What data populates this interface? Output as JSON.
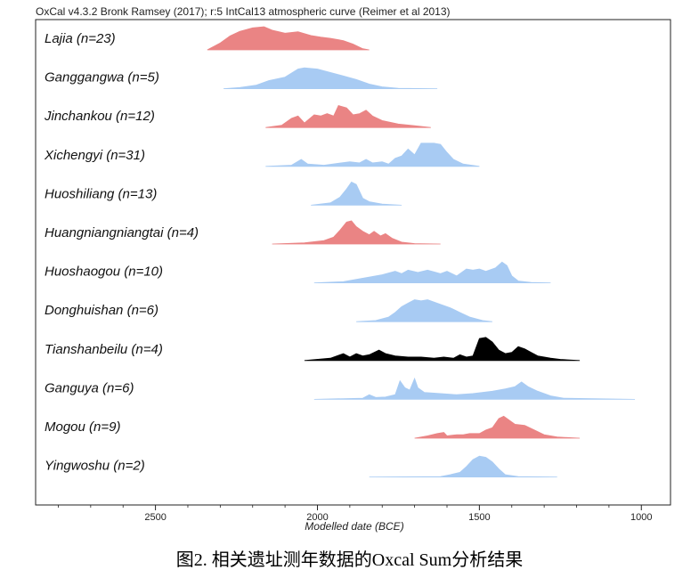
{
  "header_text": "OxCal v4.3.2 Bronk Ramsey (2017); r:5 IntCal13 atmospheric curve (Reimer et al 2013)",
  "caption": "图2. 相关遗址测年数据的Oxcal Sum分析结果",
  "colors": {
    "red": "#ea8484",
    "blue": "#a8cbf3",
    "black": "#000000"
  },
  "chart_data": {
    "type": "area",
    "title": "",
    "xlabel": "Modelled date (BCE)",
    "ylabel": "",
    "x_ticks": [
      2500,
      2000,
      1500,
      1000
    ],
    "xlim": [
      2870,
      910
    ],
    "x_reversed": true,
    "grid": false,
    "series": [
      {
        "name": "Lajia (n=23)",
        "color": "red",
        "points": [
          [
            2340,
            0
          ],
          [
            2300,
            0.3
          ],
          [
            2270,
            0.6
          ],
          [
            2240,
            0.8
          ],
          [
            2200,
            0.95
          ],
          [
            2165,
            1
          ],
          [
            2140,
            0.85
          ],
          [
            2100,
            0.72
          ],
          [
            2060,
            0.78
          ],
          [
            2020,
            0.62
          ],
          [
            1990,
            0.55
          ],
          [
            1960,
            0.5
          ],
          [
            1920,
            0.4
          ],
          [
            1890,
            0.25
          ],
          [
            1860,
            0.05
          ],
          [
            1840,
            0
          ]
        ]
      },
      {
        "name": "Ganggangwa (n=5)",
        "color": "blue",
        "points": [
          [
            2290,
            0
          ],
          [
            2240,
            0.05
          ],
          [
            2190,
            0.15
          ],
          [
            2150,
            0.35
          ],
          [
            2100,
            0.5
          ],
          [
            2060,
            0.85
          ],
          [
            2040,
            0.9
          ],
          [
            2000,
            0.85
          ],
          [
            1960,
            0.7
          ],
          [
            1920,
            0.55
          ],
          [
            1880,
            0.4
          ],
          [
            1840,
            0.2
          ],
          [
            1800,
            0.08
          ],
          [
            1750,
            0.02
          ],
          [
            1630,
            0
          ]
        ]
      },
      {
        "name": "Jinchankou (n=12)",
        "color": "red",
        "points": [
          [
            2160,
            0
          ],
          [
            2110,
            0.1
          ],
          [
            2080,
            0.4
          ],
          [
            2060,
            0.5
          ],
          [
            2040,
            0.2
          ],
          [
            2010,
            0.55
          ],
          [
            1990,
            0.5
          ],
          [
            1970,
            0.6
          ],
          [
            1950,
            0.5
          ],
          [
            1935,
            0.95
          ],
          [
            1910,
            0.85
          ],
          [
            1890,
            0.55
          ],
          [
            1870,
            0.6
          ],
          [
            1850,
            0.75
          ],
          [
            1830,
            0.5
          ],
          [
            1800,
            0.3
          ],
          [
            1750,
            0.15
          ],
          [
            1700,
            0.08
          ],
          [
            1650,
            0
          ]
        ]
      },
      {
        "name": "Xichengyi (n=31)",
        "color": "blue",
        "points": [
          [
            2160,
            0
          ],
          [
            2080,
            0.05
          ],
          [
            2050,
            0.3
          ],
          [
            2030,
            0.1
          ],
          [
            1980,
            0.05
          ],
          [
            1900,
            0.2
          ],
          [
            1870,
            0.15
          ],
          [
            1850,
            0.3
          ],
          [
            1830,
            0.15
          ],
          [
            1800,
            0.2
          ],
          [
            1780,
            0.1
          ],
          [
            1760,
            0.35
          ],
          [
            1740,
            0.45
          ],
          [
            1720,
            0.75
          ],
          [
            1700,
            0.5
          ],
          [
            1680,
            1.0
          ],
          [
            1640,
            1.0
          ],
          [
            1620,
            0.95
          ],
          [
            1600,
            0.6
          ],
          [
            1580,
            0.3
          ],
          [
            1550,
            0.1
          ],
          [
            1500,
            0
          ]
        ]
      },
      {
        "name": "Huoshiliang (n=13)",
        "color": "blue",
        "points": [
          [
            2020,
            0
          ],
          [
            1960,
            0.1
          ],
          [
            1930,
            0.35
          ],
          [
            1910,
            0.7
          ],
          [
            1895,
            1.0
          ],
          [
            1880,
            0.9
          ],
          [
            1860,
            0.3
          ],
          [
            1840,
            0.15
          ],
          [
            1800,
            0.05
          ],
          [
            1740,
            0
          ]
        ]
      },
      {
        "name": "Huangniangniangtai (n=4)",
        "color": "red",
        "points": [
          [
            2140,
            0
          ],
          [
            2040,
            0.05
          ],
          [
            1980,
            0.15
          ],
          [
            1950,
            0.3
          ],
          [
            1930,
            0.6
          ],
          [
            1910,
            0.95
          ],
          [
            1895,
            1.0
          ],
          [
            1880,
            0.75
          ],
          [
            1860,
            0.55
          ],
          [
            1840,
            0.4
          ],
          [
            1825,
            0.55
          ],
          [
            1805,
            0.35
          ],
          [
            1790,
            0.45
          ],
          [
            1770,
            0.25
          ],
          [
            1740,
            0.08
          ],
          [
            1700,
            0.02
          ],
          [
            1620,
            0
          ]
        ]
      },
      {
        "name": "Huoshaogou (n=10)",
        "color": "blue",
        "points": [
          [
            2010,
            0
          ],
          [
            1920,
            0.05
          ],
          [
            1860,
            0.2
          ],
          [
            1800,
            0.35
          ],
          [
            1760,
            0.5
          ],
          [
            1740,
            0.4
          ],
          [
            1720,
            0.55
          ],
          [
            1690,
            0.45
          ],
          [
            1660,
            0.55
          ],
          [
            1620,
            0.4
          ],
          [
            1600,
            0.5
          ],
          [
            1570,
            0.3
          ],
          [
            1540,
            0.6
          ],
          [
            1520,
            0.55
          ],
          [
            1500,
            0.6
          ],
          [
            1480,
            0.5
          ],
          [
            1450,
            0.65
          ],
          [
            1430,
            0.9
          ],
          [
            1415,
            0.75
          ],
          [
            1400,
            0.3
          ],
          [
            1380,
            0.08
          ],
          [
            1340,
            0.02
          ],
          [
            1280,
            0
          ]
        ]
      },
      {
        "name": "Donghuishan (n=6)",
        "color": "blue",
        "points": [
          [
            1880,
            0
          ],
          [
            1820,
            0.05
          ],
          [
            1780,
            0.2
          ],
          [
            1760,
            0.4
          ],
          [
            1740,
            0.65
          ],
          [
            1720,
            0.8
          ],
          [
            1700,
            0.95
          ],
          [
            1680,
            0.9
          ],
          [
            1660,
            0.95
          ],
          [
            1640,
            0.85
          ],
          [
            1620,
            0.75
          ],
          [
            1590,
            0.6
          ],
          [
            1560,
            0.4
          ],
          [
            1530,
            0.2
          ],
          [
            1490,
            0.05
          ],
          [
            1460,
            0
          ]
        ]
      },
      {
        "name": "Tianshanbeilu (n=4)",
        "color": "black",
        "points": [
          [
            2040,
            0
          ],
          [
            1960,
            0.1
          ],
          [
            1920,
            0.3
          ],
          [
            1900,
            0.15
          ],
          [
            1880,
            0.3
          ],
          [
            1860,
            0.2
          ],
          [
            1840,
            0.25
          ],
          [
            1810,
            0.45
          ],
          [
            1790,
            0.3
          ],
          [
            1760,
            0.2
          ],
          [
            1720,
            0.15
          ],
          [
            1680,
            0.15
          ],
          [
            1640,
            0.1
          ],
          [
            1610,
            0.15
          ],
          [
            1580,
            0.1
          ],
          [
            1560,
            0.25
          ],
          [
            1540,
            0.15
          ],
          [
            1520,
            0.2
          ],
          [
            1500,
            0.95
          ],
          [
            1480,
            1.0
          ],
          [
            1460,
            0.8
          ],
          [
            1440,
            0.45
          ],
          [
            1420,
            0.3
          ],
          [
            1400,
            0.35
          ],
          [
            1380,
            0.6
          ],
          [
            1360,
            0.5
          ],
          [
            1340,
            0.35
          ],
          [
            1320,
            0.2
          ],
          [
            1280,
            0.1
          ],
          [
            1250,
            0.05
          ],
          [
            1190,
            0
          ]
        ]
      },
      {
        "name": "Ganguya (n=6)",
        "color": "blue",
        "points": [
          [
            2010,
            0
          ],
          [
            1860,
            0.05
          ],
          [
            1840,
            0.2
          ],
          [
            1820,
            0.08
          ],
          [
            1790,
            0.1
          ],
          [
            1760,
            0.2
          ],
          [
            1745,
            0.8
          ],
          [
            1730,
            0.5
          ],
          [
            1715,
            0.4
          ],
          [
            1700,
            0.9
          ],
          [
            1690,
            0.5
          ],
          [
            1670,
            0.3
          ],
          [
            1620,
            0.25
          ],
          [
            1570,
            0.2
          ],
          [
            1520,
            0.25
          ],
          [
            1460,
            0.35
          ],
          [
            1420,
            0.45
          ],
          [
            1390,
            0.55
          ],
          [
            1370,
            0.75
          ],
          [
            1350,
            0.55
          ],
          [
            1320,
            0.35
          ],
          [
            1280,
            0.15
          ],
          [
            1240,
            0.05
          ],
          [
            1020,
            0
          ]
        ]
      },
      {
        "name": "Mogou (n=9)",
        "color": "red",
        "points": [
          [
            1700,
            0
          ],
          [
            1660,
            0.1
          ],
          [
            1630,
            0.2
          ],
          [
            1610,
            0.25
          ],
          [
            1600,
            0.1
          ],
          [
            1570,
            0.15
          ],
          [
            1550,
            0.15
          ],
          [
            1530,
            0.2
          ],
          [
            1500,
            0.2
          ],
          [
            1480,
            0.35
          ],
          [
            1460,
            0.45
          ],
          [
            1440,
            0.85
          ],
          [
            1425,
            0.95
          ],
          [
            1410,
            0.8
          ],
          [
            1390,
            0.6
          ],
          [
            1360,
            0.55
          ],
          [
            1330,
            0.35
          ],
          [
            1300,
            0.15
          ],
          [
            1260,
            0.05
          ],
          [
            1190,
            0
          ]
        ]
      },
      {
        "name": "Yingwoshu (n=2)",
        "color": "blue",
        "points": [
          [
            1840,
            0
          ],
          [
            1620,
            0.02
          ],
          [
            1590,
            0.1
          ],
          [
            1560,
            0.2
          ],
          [
            1540,
            0.45
          ],
          [
            1520,
            0.75
          ],
          [
            1500,
            0.9
          ],
          [
            1480,
            0.85
          ],
          [
            1460,
            0.65
          ],
          [
            1440,
            0.35
          ],
          [
            1420,
            0.1
          ],
          [
            1380,
            0.02
          ],
          [
            1260,
            0
          ]
        ]
      }
    ]
  }
}
